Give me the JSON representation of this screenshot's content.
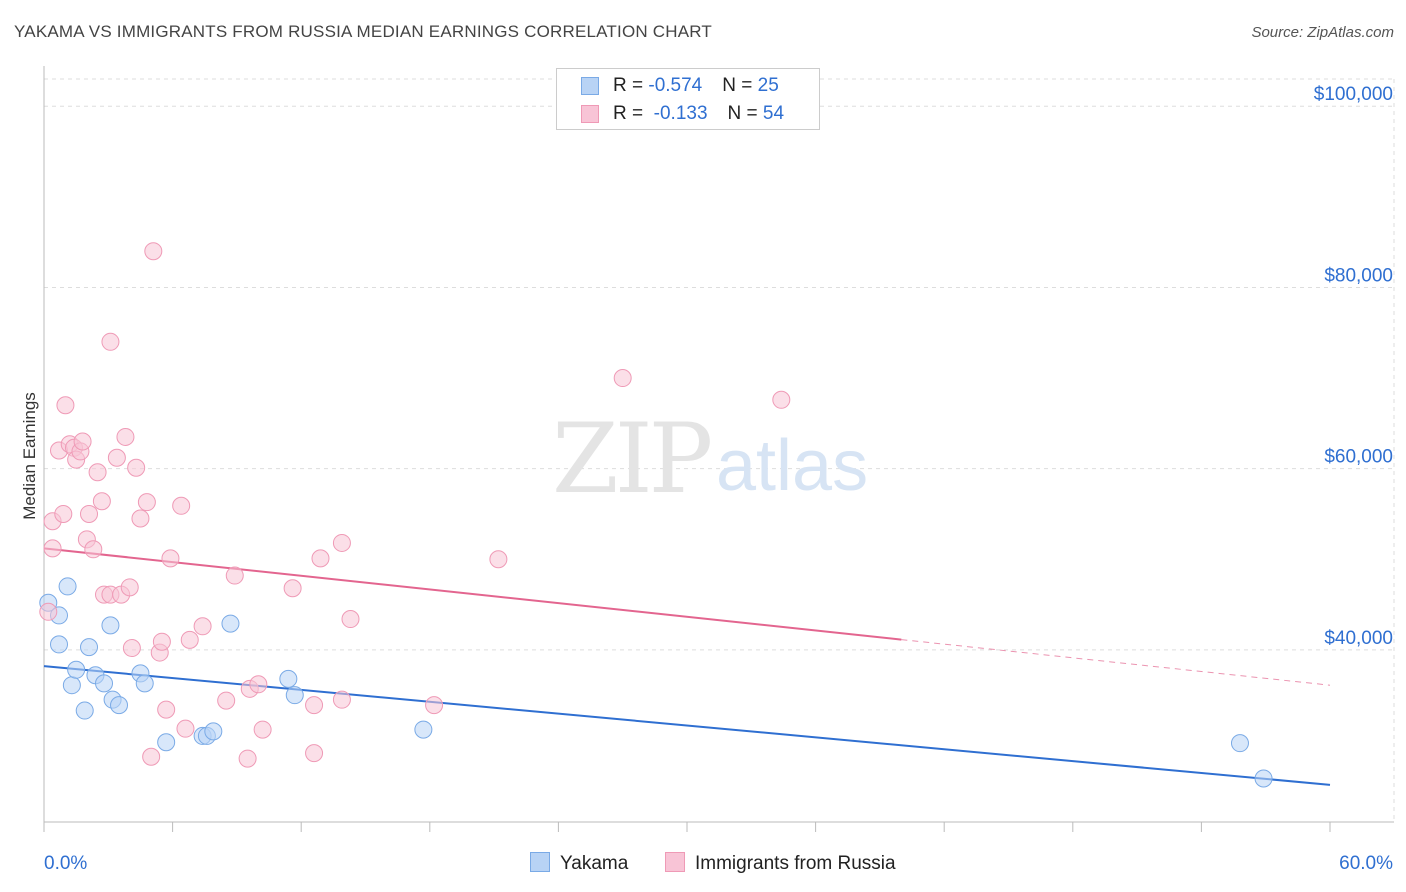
{
  "title": "YAKAMA VS IMMIGRANTS FROM RUSSIA MEDIAN EARNINGS CORRELATION CHART",
  "source": "Source: ZipAtlas.com",
  "watermark": {
    "zip": "ZIP",
    "atlas": "atlas"
  },
  "colors": {
    "blue_fill": "#b8d3f5",
    "blue_stroke": "#7aaae6",
    "blue_line": "#2f6fd1",
    "pink_fill": "#f8c4d6",
    "pink_stroke": "#ef9ab6",
    "pink_line": "#e3658f",
    "grid": "#dddddd",
    "axis_label": "#2f6fd1"
  },
  "correlation_box": {
    "rows": [
      {
        "r_label": "R = ",
        "r_value": "-0.574",
        "n_label": "N = ",
        "n_value": "25",
        "series": "blue"
      },
      {
        "r_label": "R = ",
        "r_value": " -0.133",
        "n_label": "N = ",
        "n_value": "54",
        "series": "pink"
      }
    ]
  },
  "legend": {
    "items": [
      "Yakama",
      "Immigrants from Russia"
    ]
  },
  "chart_data": {
    "type": "scatter",
    "title": "YAKAMA VS IMMIGRANTS FROM RUSSIA MEDIAN EARNINGS CORRELATION CHART",
    "xlabel": "",
    "ylabel": "Median Earnings",
    "xlim": [
      0,
      60
    ],
    "ylim": [
      21000,
      104000
    ],
    "x_tick_labels": [
      "0.0%",
      "60.0%"
    ],
    "y_ticks": [
      {
        "value": 40000,
        "label": "$40,000"
      },
      {
        "value": 60000,
        "label": "$60,000"
      },
      {
        "value": 80000,
        "label": "$80,000"
      },
      {
        "value": 100000,
        "label": "$100,000"
      }
    ],
    "grid": true,
    "series": [
      {
        "name": "Yakama",
        "color": "blue",
        "r": -0.574,
        "n": 25,
        "trend": {
          "x0": 0,
          "y0": 38200,
          "x1": 60,
          "y1": 25100,
          "solid_to": 60
        },
        "points": [
          [
            0.2,
            45200
          ],
          [
            0.7,
            40600
          ],
          [
            0.7,
            43800
          ],
          [
            1.1,
            47000
          ],
          [
            1.3,
            36100
          ],
          [
            1.5,
            37800
          ],
          [
            1.9,
            33300
          ],
          [
            2.1,
            40300
          ],
          [
            2.4,
            37200
          ],
          [
            2.8,
            36300
          ],
          [
            3.1,
            42700
          ],
          [
            3.2,
            34500
          ],
          [
            3.5,
            33900
          ],
          [
            4.5,
            37400
          ],
          [
            4.7,
            36300
          ],
          [
            5.7,
            29800
          ],
          [
            7.4,
            30500
          ],
          [
            7.6,
            30500
          ],
          [
            7.9,
            31000
          ],
          [
            8.7,
            42900
          ],
          [
            11.4,
            36800
          ],
          [
            11.7,
            35000
          ],
          [
            17.7,
            31200
          ],
          [
            55.8,
            29700
          ],
          [
            56.9,
            25800
          ]
        ]
      },
      {
        "name": "Immigrants from Russia",
        "color": "pink",
        "r": -0.133,
        "n": 54,
        "trend": {
          "x0": 0,
          "y0": 51200,
          "x1": 60,
          "y1": 36100,
          "solid_to": 40
        },
        "points": [
          [
            0.2,
            44200
          ],
          [
            0.4,
            51200
          ],
          [
            0.4,
            54200
          ],
          [
            0.7,
            62000
          ],
          [
            0.9,
            55000
          ],
          [
            1.0,
            67000
          ],
          [
            1.2,
            62700
          ],
          [
            1.4,
            62300
          ],
          [
            1.5,
            61000
          ],
          [
            1.7,
            61900
          ],
          [
            2.0,
            52200
          ],
          [
            2.1,
            55000
          ],
          [
            2.3,
            51100
          ],
          [
            2.5,
            59600
          ],
          [
            2.7,
            56400
          ],
          [
            2.8,
            46100
          ],
          [
            3.1,
            74000
          ],
          [
            3.1,
            46100
          ],
          [
            3.4,
            61200
          ],
          [
            3.6,
            46100
          ],
          [
            3.8,
            63500
          ],
          [
            4.0,
            46900
          ],
          [
            4.1,
            40200
          ],
          [
            4.3,
            60100
          ],
          [
            4.5,
            54500
          ],
          [
            4.8,
            56300
          ],
          [
            5.0,
            28200
          ],
          [
            5.1,
            84000
          ],
          [
            5.4,
            39700
          ],
          [
            5.5,
            40900
          ],
          [
            5.7,
            33400
          ],
          [
            5.9,
            50100
          ],
          [
            6.4,
            55900
          ],
          [
            6.6,
            31300
          ],
          [
            6.8,
            41100
          ],
          [
            7.4,
            42600
          ],
          [
            8.5,
            34400
          ],
          [
            8.9,
            48200
          ],
          [
            9.5,
            28000
          ],
          [
            9.6,
            35700
          ],
          [
            10.0,
            36200
          ],
          [
            10.2,
            31200
          ],
          [
            11.6,
            46800
          ],
          [
            12.6,
            33900
          ],
          [
            12.6,
            28600
          ],
          [
            12.9,
            50100
          ],
          [
            13.9,
            51800
          ],
          [
            13.9,
            34500
          ],
          [
            14.3,
            43400
          ],
          [
            18.2,
            33900
          ],
          [
            21.2,
            50000
          ],
          [
            27.0,
            70000
          ],
          [
            34.4,
            67600
          ],
          [
            1.8,
            63000
          ]
        ]
      }
    ]
  }
}
